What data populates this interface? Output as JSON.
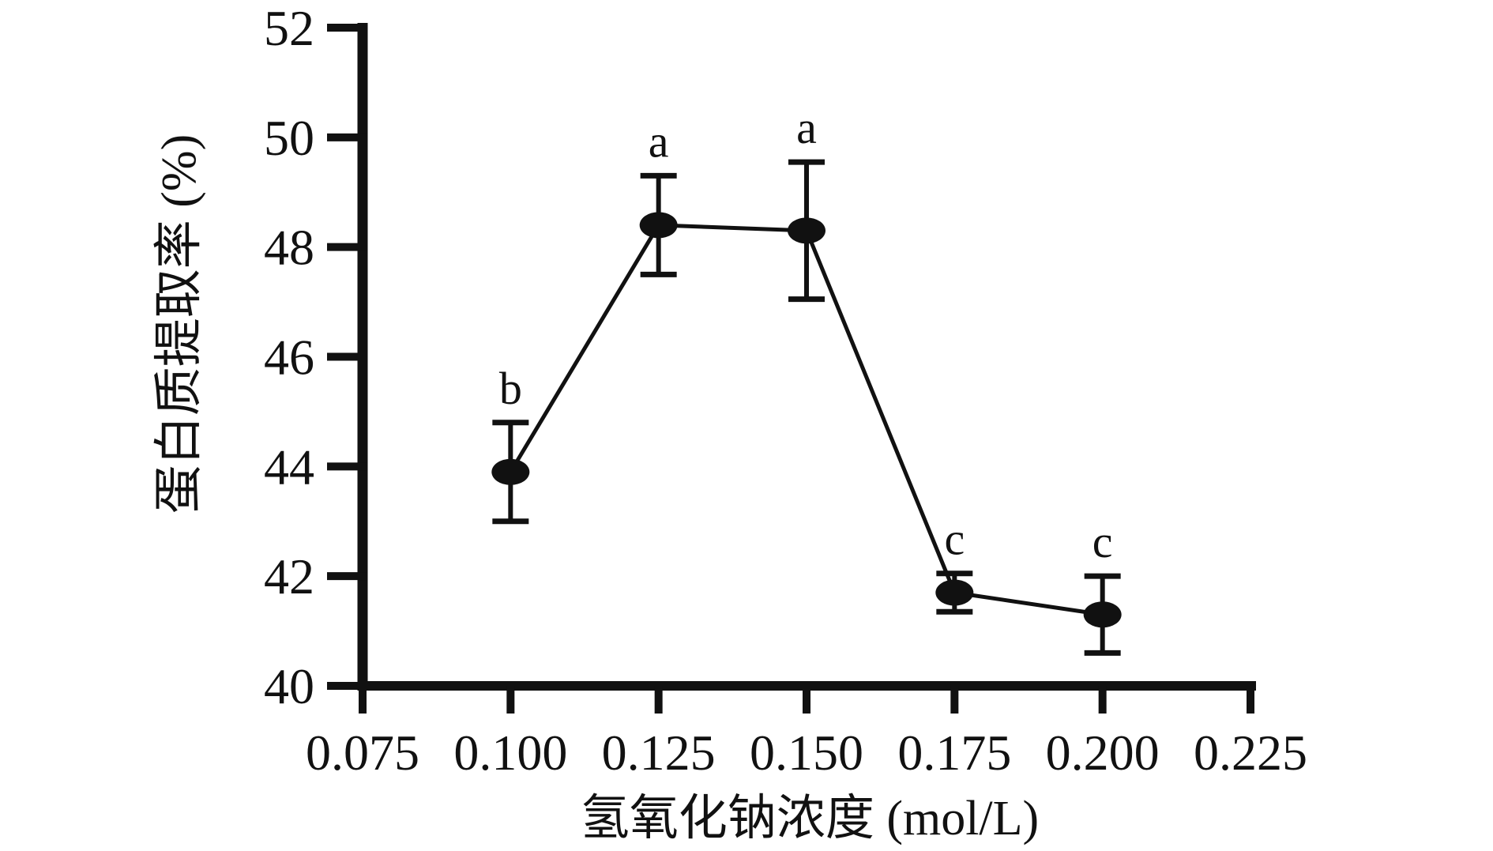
{
  "figure": {
    "background_color": "#ffffff",
    "ink_color": "#111111"
  },
  "chart_data": {
    "type": "line",
    "title": "",
    "xlabel": "氢氧化钠浓度 (mol/L)",
    "ylabel": "蛋白质提取率 (%)",
    "xlim": [
      0.075,
      0.225
    ],
    "ylim": [
      40,
      52
    ],
    "x_ticks": [
      0.075,
      0.1,
      0.125,
      0.15,
      0.175,
      0.2,
      0.225
    ],
    "x_tick_labels": [
      "0.075",
      "0.100",
      "0.125",
      "0.150",
      "0.175",
      "0.200",
      "0.225"
    ],
    "y_ticks": [
      40,
      42,
      44,
      46,
      48,
      50,
      52
    ],
    "y_tick_labels": [
      "40",
      "42",
      "44",
      "46",
      "48",
      "50",
      "52"
    ],
    "grid": false,
    "legend": false,
    "marker": "filled-black-ellipse",
    "error_bars": "vertical-with-caps",
    "series": [
      {
        "name": "protein-extraction-rate",
        "x": [
          0.1,
          0.125,
          0.15,
          0.175,
          0.2
        ],
        "y": [
          43.9,
          48.4,
          48.3,
          41.7,
          41.3
        ],
        "y_err_upper": [
          0.9,
          0.9,
          1.25,
          0.35,
          0.7
        ],
        "y_err_lower": [
          0.9,
          0.9,
          1.25,
          0.35,
          0.7
        ],
        "sig_labels": [
          "b",
          "a",
          "a",
          "c",
          "c"
        ]
      }
    ]
  }
}
